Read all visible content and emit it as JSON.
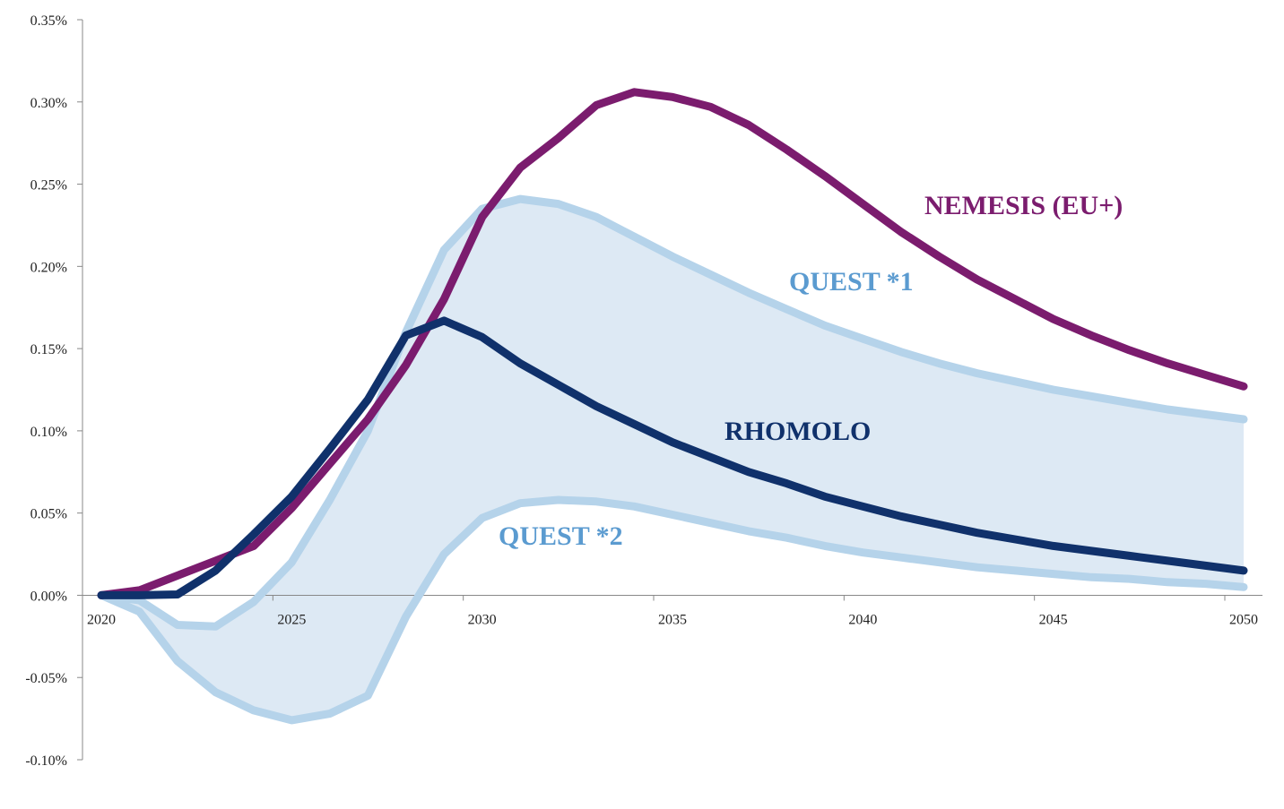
{
  "chart_data": {
    "type": "line",
    "title": "",
    "xlabel": "",
    "ylabel": "",
    "x": [
      2020,
      2021,
      2022,
      2023,
      2024,
      2025,
      2026,
      2027,
      2028,
      2029,
      2030,
      2031,
      2032,
      2033,
      2034,
      2035,
      2036,
      2037,
      2038,
      2039,
      2040,
      2041,
      2042,
      2043,
      2044,
      2045,
      2046,
      2047,
      2048,
      2049,
      2050
    ],
    "xlim": [
      2020,
      2050
    ],
    "ylim": [
      -0.1,
      0.35
    ],
    "x_ticks": [
      "2020",
      "2025",
      "2030",
      "2035",
      "2040",
      "2045",
      "2050"
    ],
    "y_ticks": [
      "0.35%",
      "0.30%",
      "0.25%",
      "0.20%",
      "0.15%",
      "0.10%",
      "0.05%",
      "0.00%",
      "-0.05%",
      "-0.10%"
    ],
    "y_tick_values": [
      0.35,
      0.3,
      0.25,
      0.2,
      0.15,
      0.1,
      0.05,
      0.0,
      -0.05,
      -0.1
    ],
    "grid": false,
    "shaded_band": {
      "between": [
        "QUEST *1",
        "QUEST *2"
      ],
      "color": "#dde9f4"
    },
    "series": [
      {
        "name": "QUEST *1",
        "color": "#b5d3ea",
        "label_color": "#5b9bd0",
        "values": [
          0,
          -0.003,
          -0.018,
          -0.019,
          -0.004,
          0.02,
          0.058,
          0.1,
          0.16,
          0.21,
          0.235,
          0.241,
          0.238,
          0.23,
          0.218,
          0.206,
          0.195,
          0.184,
          0.174,
          0.164,
          0.156,
          0.148,
          0.141,
          0.135,
          0.13,
          0.125,
          0.121,
          0.117,
          0.113,
          0.11,
          0.107
        ]
      },
      {
        "name": "QUEST *2",
        "color": "#b5d3ea",
        "label_color": "#5b9bd0",
        "values": [
          0,
          -0.01,
          -0.04,
          -0.059,
          -0.07,
          -0.076,
          -0.072,
          -0.061,
          -0.013,
          0.025,
          0.047,
          0.056,
          0.058,
          0.057,
          0.054,
          0.049,
          0.044,
          0.039,
          0.035,
          0.03,
          0.026,
          0.023,
          0.02,
          0.017,
          0.015,
          0.013,
          0.011,
          0.01,
          0.008,
          0.007,
          0.005
        ]
      },
      {
        "name": "NEMESIS (EU+)",
        "color": "#7b1c6e",
        "label_color": "#7b1c6e",
        "values": [
          0,
          0.003,
          0.012,
          0.021,
          0.03,
          0.053,
          0.08,
          0.107,
          0.14,
          0.18,
          0.23,
          0.26,
          0.278,
          0.298,
          0.306,
          0.303,
          0.297,
          0.286,
          0.271,
          0.255,
          0.238,
          0.221,
          0.206,
          0.192,
          0.18,
          0.168,
          0.158,
          0.149,
          0.141,
          0.134,
          0.127
        ]
      },
      {
        "name": "RHOMOLO",
        "color": "#10316b",
        "label_color": "#10316b",
        "values": [
          0,
          0,
          0.0005,
          0.015,
          0.037,
          0.06,
          0.089,
          0.119,
          0.158,
          0.167,
          0.157,
          0.141,
          0.128,
          0.115,
          0.104,
          0.093,
          0.084,
          0.075,
          0.068,
          0.06,
          0.054,
          0.048,
          0.043,
          0.038,
          0.034,
          0.03,
          0.027,
          0.024,
          0.021,
          0.018,
          0.015
        ]
      }
    ]
  }
}
